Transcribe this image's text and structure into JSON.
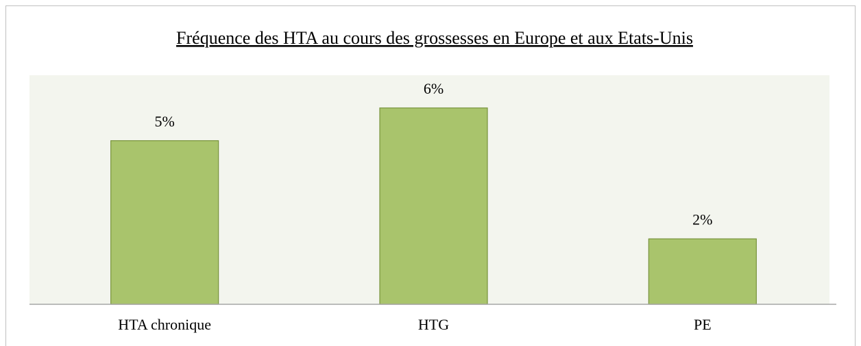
{
  "chart_data": {
    "type": "bar",
    "title": "Fréquence des HTA au cours des grossesses en Europe et aux Etats-Unis",
    "categories": [
      "HTA chronique",
      "HTG",
      "PE"
    ],
    "values": [
      5,
      6,
      2
    ],
    "value_labels": [
      "5%",
      "6%",
      "2%"
    ],
    "color": "#a9c46c",
    "ylim": [
      0,
      7
    ]
  }
}
